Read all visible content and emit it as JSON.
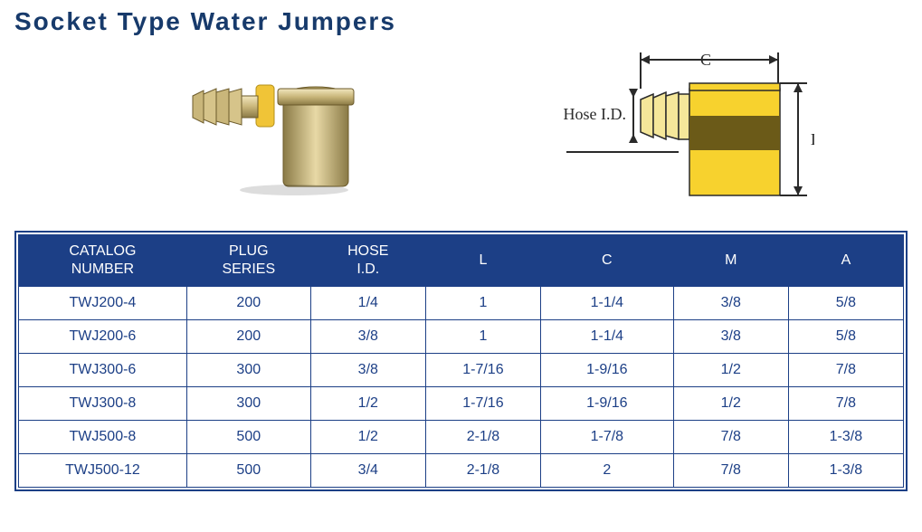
{
  "title": "Socket Type Water Jumpers",
  "diagram": {
    "label_hose": "Hose I.D.",
    "label_c": "C",
    "label_l": "L",
    "body_fill": "#f7d22e",
    "body_shade": "#6b5a18",
    "barb_fill": "#f5e79a",
    "line_color": "#2a2a2a",
    "bg": "#ffffff"
  },
  "photo": {
    "brass_light": "#e8d9a6",
    "brass_mid": "#c9b67a",
    "brass_dark": "#8a7a46",
    "ring_yellow": "#f0c437",
    "bg": "#ffffff"
  },
  "table": {
    "header_bg": "#1c3f86",
    "header_fg": "#ffffff",
    "border": "#1c3f86",
    "cell_fg": "#1c3f86",
    "columns": [
      {
        "key": "catalog",
        "label_lines": [
          "CATALOG",
          "NUMBER"
        ]
      },
      {
        "key": "plug",
        "label_lines": [
          "PLUG",
          "SERIES"
        ]
      },
      {
        "key": "hose",
        "label_lines": [
          "HOSE",
          "I.D."
        ]
      },
      {
        "key": "l",
        "label_lines": [
          "L"
        ]
      },
      {
        "key": "c",
        "label_lines": [
          "C"
        ]
      },
      {
        "key": "m",
        "label_lines": [
          "M"
        ]
      },
      {
        "key": "a",
        "label_lines": [
          "A"
        ]
      }
    ],
    "rows": [
      {
        "catalog": "TWJ200-4",
        "plug": "200",
        "hose": "1/4",
        "l": "1",
        "c": "1-1/4",
        "m": "3/8",
        "a": "5/8"
      },
      {
        "catalog": "TWJ200-6",
        "plug": "200",
        "hose": "3/8",
        "l": "1",
        "c": "1-1/4",
        "m": "3/8",
        "a": "5/8"
      },
      {
        "catalog": "TWJ300-6",
        "plug": "300",
        "hose": "3/8",
        "l": "1-7/16",
        "c": "1-9/16",
        "m": "1/2",
        "a": "7/8"
      },
      {
        "catalog": "TWJ300-8",
        "plug": "300",
        "hose": "1/2",
        "l": "1-7/16",
        "c": "1-9/16",
        "m": "1/2",
        "a": "7/8"
      },
      {
        "catalog": "TWJ500-8",
        "plug": "500",
        "hose": "1/2",
        "l": "2-1/8",
        "c": "1-7/8",
        "m": "7/8",
        "a": "1-3/8"
      },
      {
        "catalog": "TWJ500-12",
        "plug": "500",
        "hose": "3/4",
        "l": "2-1/8",
        "c": "2",
        "m": "7/8",
        "a": "1-3/8"
      }
    ]
  }
}
